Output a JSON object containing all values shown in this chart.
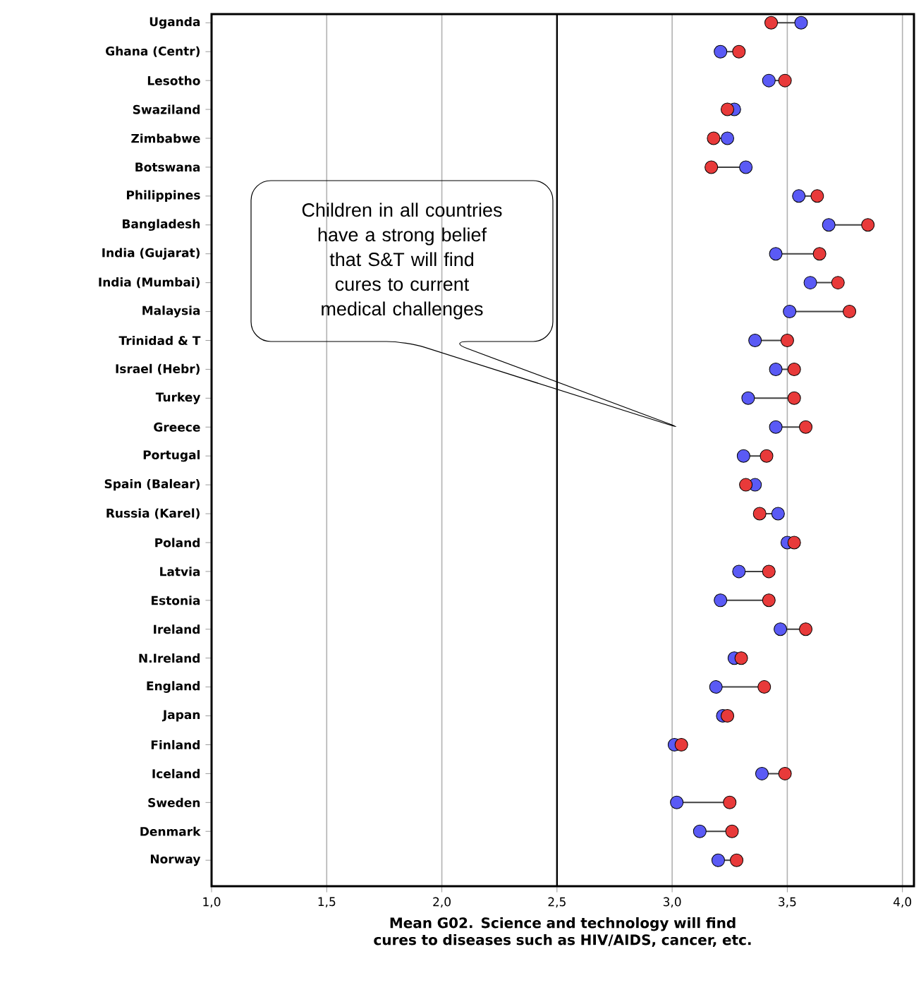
{
  "chart_data": {
    "type": "scatter",
    "orientation": "horizontal",
    "categories": [
      "Uganda",
      "Ghana (Centr)",
      "Lesotho",
      "Swaziland",
      "Zimbabwe",
      "Botswana",
      "Philippines",
      "Bangladesh",
      "India (Gujarat)",
      "India (Mumbai)",
      "Malaysia",
      "Trinidad & T",
      "Israel (Hebr)",
      "Turkey",
      "Greece",
      "Portugal",
      "Spain (Balear)",
      "Russia (Karel)",
      "Poland",
      "Latvia",
      "Estonia",
      "Ireland",
      "N.Ireland",
      "England",
      "Japan",
      "Finland",
      "Iceland",
      "Sweden",
      "Denmark",
      "Norway"
    ],
    "series": [
      {
        "color": "#5a5af5",
        "values": [
          3.56,
          3.21,
          3.42,
          3.27,
          3.24,
          3.32,
          3.55,
          3.68,
          3.45,
          3.6,
          3.51,
          3.36,
          3.45,
          3.33,
          3.45,
          3.31,
          3.36,
          3.46,
          3.5,
          3.29,
          3.21,
          3.47,
          3.27,
          3.19,
          3.22,
          3.01,
          3.39,
          3.02,
          3.12,
          3.2
        ]
      },
      {
        "color": "#e83a3a",
        "values": [
          3.43,
          3.29,
          3.49,
          3.24,
          3.18,
          3.17,
          3.63,
          3.85,
          3.64,
          3.72,
          3.77,
          3.5,
          3.53,
          3.53,
          3.58,
          3.41,
          3.32,
          3.38,
          3.53,
          3.42,
          3.42,
          3.58,
          3.3,
          3.4,
          3.24,
          3.04,
          3.49,
          3.25,
          3.26,
          3.28
        ]
      }
    ],
    "marker": "circle",
    "xlim": [
      1.0,
      4.05
    ],
    "xticks": [
      {
        "value": 1.0,
        "label": "1,0"
      },
      {
        "value": 1.5,
        "label": "1,5"
      },
      {
        "value": 2.0,
        "label": "2,0"
      },
      {
        "value": 2.5,
        "label": "2,5"
      },
      {
        "value": 3.0,
        "label": "3,0"
      },
      {
        "value": 3.5,
        "label": "3,5"
      },
      {
        "value": 4.0,
        "label": "4,0"
      }
    ],
    "grid": "x",
    "ref_lines": [
      {
        "axis": "x",
        "value": 2.5,
        "color": "#000000"
      }
    ],
    "xlabel": "Mean G02. Science and technology will find cures to diseases such as HIV/AIDS, cancer, etc.",
    "annotations": [
      "Children in all countries have a strong belief that S&T will find cures to current medical challenges"
    ]
  }
}
